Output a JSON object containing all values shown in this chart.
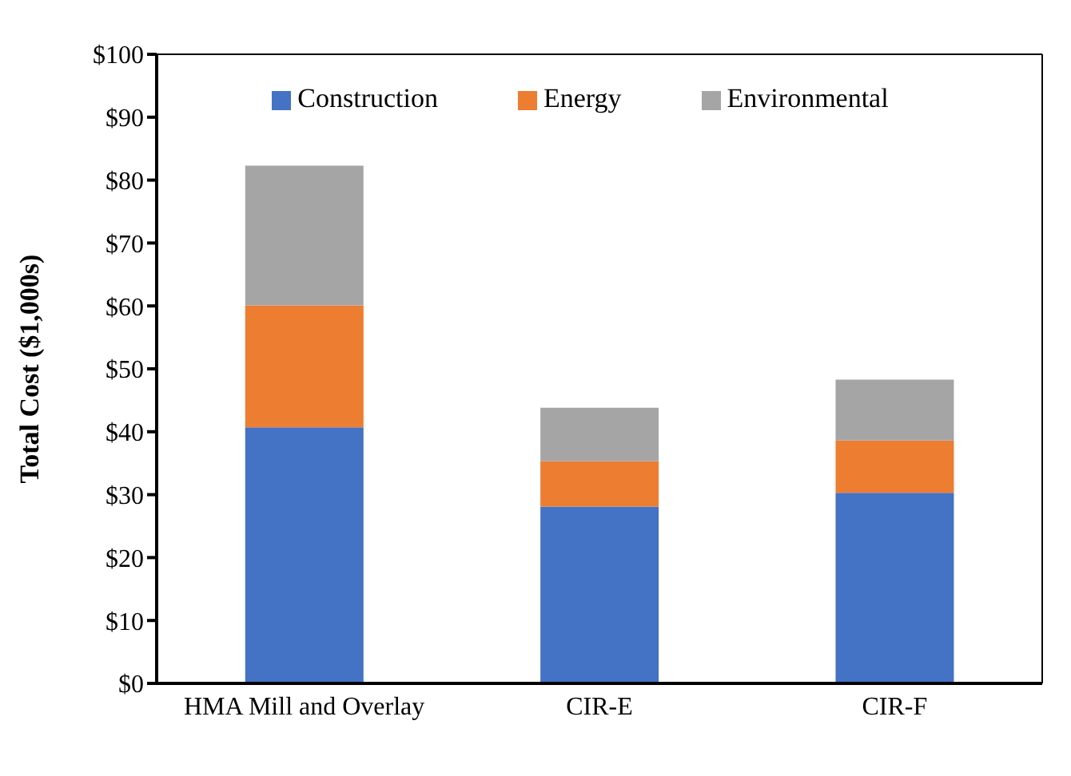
{
  "chart_data": {
    "type": "bar",
    "stacked": true,
    "ylabel": "Total Cost ($1,000s)",
    "categories": [
      "HMA Mill and Overlay",
      "CIR-E",
      "CIR-F"
    ],
    "series": [
      {
        "name": "Construction",
        "color": "#4472c4",
        "values": [
          40.7,
          28.1,
          30.3
        ]
      },
      {
        "name": "Energy",
        "color": "#ed7d31",
        "values": [
          19.4,
          7.2,
          8.3
        ]
      },
      {
        "name": "Environmental",
        "color": "#a5a5a5",
        "values": [
          22.2,
          8.5,
          9.7
        ]
      }
    ],
    "ylim": [
      0,
      100
    ],
    "yticks": [
      {
        "value": 0,
        "label": "$0"
      },
      {
        "value": 10,
        "label": "$10"
      },
      {
        "value": 20,
        "label": "$20"
      },
      {
        "value": 30,
        "label": "$30"
      },
      {
        "value": 40,
        "label": "$40"
      },
      {
        "value": 50,
        "label": "$50"
      },
      {
        "value": 60,
        "label": "$60"
      },
      {
        "value": 70,
        "label": "$70"
      },
      {
        "value": 80,
        "label": "$80"
      },
      {
        "value": 90,
        "label": "$90"
      },
      {
        "value": 100,
        "label": "$100"
      }
    ],
    "grid": false,
    "legend": "top"
  }
}
